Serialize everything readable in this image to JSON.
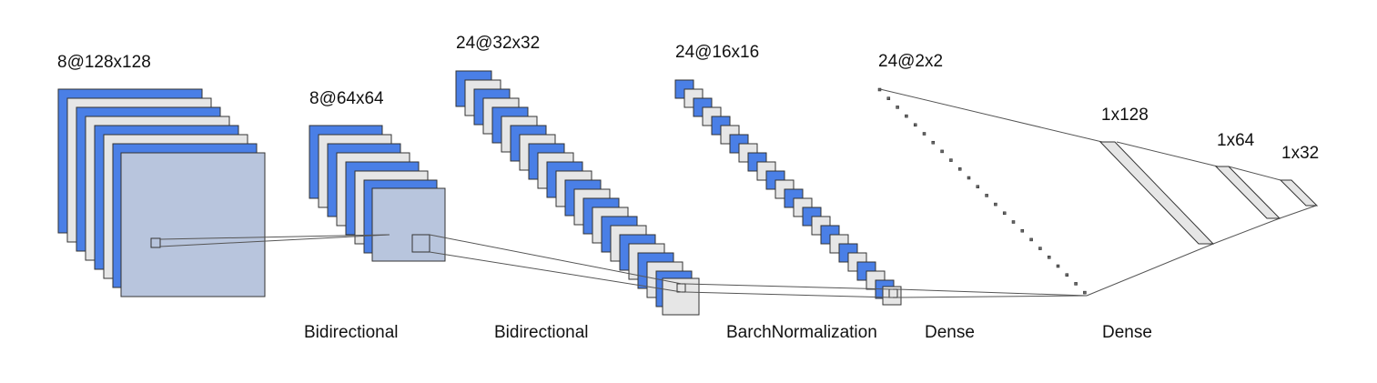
{
  "diagram": {
    "colors": {
      "blue": "#4a7fe6",
      "gray": "#e6e6e6",
      "stroke": "#333333",
      "overlay": "#b8c5dd",
      "line": "#555555"
    },
    "layers": [
      {
        "id": "conv1",
        "label": "8@128x128",
        "count": 8
      },
      {
        "id": "conv2",
        "label": "8@64x64",
        "count": 8
      },
      {
        "id": "conv3",
        "label": "24@32x32",
        "count": 24
      },
      {
        "id": "conv4",
        "label": "24@16x16",
        "count": 24
      },
      {
        "id": "conv5",
        "label": "24@2x2",
        "count": 24
      },
      {
        "id": "fc1",
        "label": "1x128"
      },
      {
        "id": "fc2",
        "label": "1x64"
      },
      {
        "id": "fc3",
        "label": "1x32"
      }
    ],
    "operations": [
      {
        "id": "op1",
        "label": "Bidirectional"
      },
      {
        "id": "op2",
        "label": "Bidirectional"
      },
      {
        "id": "op3",
        "label": "BarchNormalization"
      },
      {
        "id": "op4",
        "label": "Dense"
      },
      {
        "id": "op5",
        "label": "Dense"
      }
    ]
  }
}
